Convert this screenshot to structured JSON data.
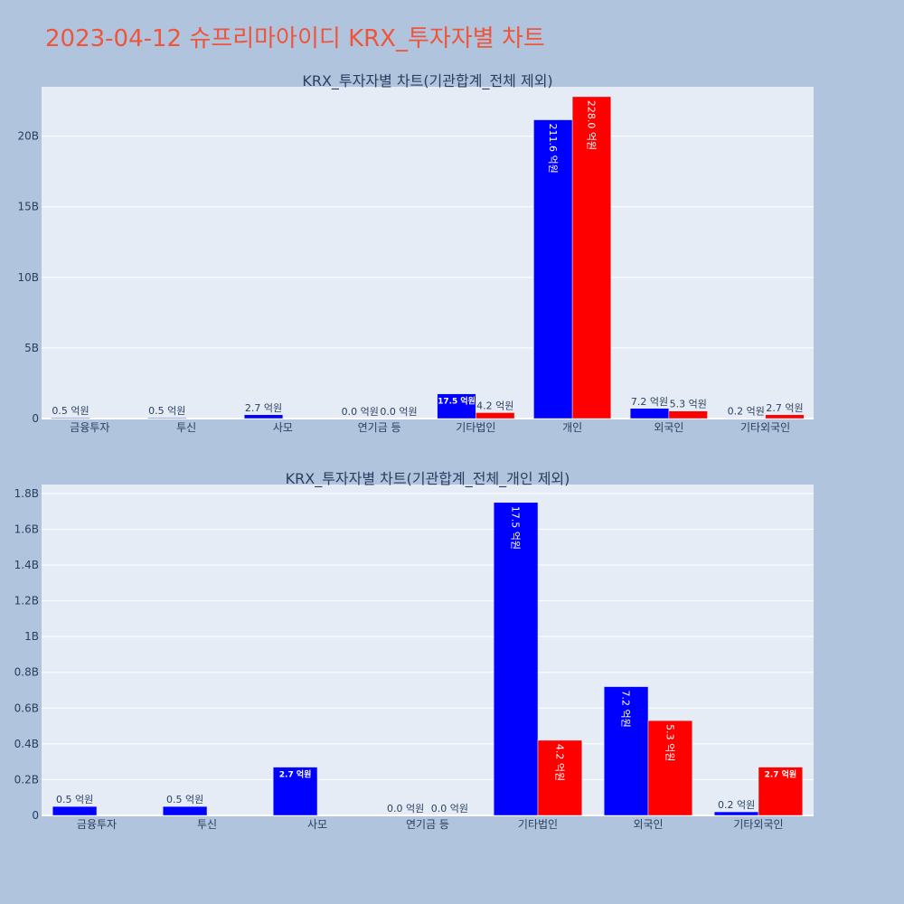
{
  "page": {
    "title": "2023-04-12 슈프리마아이디 KRX_투자자별 차트"
  },
  "colors": {
    "series_a": "#0000ff",
    "series_b": "#ff0000",
    "plot_bg": "#e5ecf6",
    "page_bg": "#b0c4de",
    "title": "#ef553b"
  },
  "chart_data": [
    {
      "type": "bar",
      "title": "KRX_투자자별 차트(기관합계_전체 제외)",
      "categories": [
        "금융투자",
        "투신",
        "사모",
        "연기금 등",
        "기타법인",
        "개인",
        "외국인",
        "기타외국인"
      ],
      "series": [
        {
          "color": "#0000ff",
          "values": [
            0.05,
            0.05,
            0.27,
            0.0,
            1.75,
            21.16,
            0.72,
            0.02
          ],
          "labels": [
            "0.5 억원",
            "0.5 억원",
            "2.7 억원",
            "0.0 억원",
            "17.5 억원",
            "211.6 억원",
            "7.2 억원",
            "0.2 억원"
          ]
        },
        {
          "color": "#ff0000",
          "values": [
            0.0,
            0.0,
            0.0,
            0.0,
            0.42,
            22.8,
            0.53,
            0.27
          ],
          "labels": [
            "",
            "",
            "",
            "0.0 억원",
            "4.2 억원",
            "228.0 억원",
            "5.3 억원",
            "2.7 억원"
          ]
        }
      ],
      "ylim": [
        0,
        23.5
      ],
      "yticks": [
        0,
        5,
        10,
        15,
        20
      ],
      "ytick_labels": [
        "0",
        "5B",
        "10B",
        "15B",
        "20B"
      ],
      "grid": true
    },
    {
      "type": "bar",
      "title": "KRX_투자자별 차트(기관합계_전체_개인 제외)",
      "categories": [
        "금융투자",
        "투신",
        "사모",
        "연기금 등",
        "기타법인",
        "외국인",
        "기타외국인"
      ],
      "series": [
        {
          "color": "#0000ff",
          "values": [
            0.05,
            0.05,
            0.27,
            0.0,
            1.75,
            0.72,
            0.02
          ],
          "labels": [
            "0.5 억원",
            "0.5 억원",
            "2.7 억원",
            "0.0 억원",
            "17.5 억원",
            "7.2 억원",
            "0.2 억원"
          ]
        },
        {
          "color": "#ff0000",
          "values": [
            0.0,
            0.0,
            0.0,
            0.0,
            0.42,
            0.53,
            0.27
          ],
          "labels": [
            "",
            "",
            "",
            "0.0 억원",
            "4.2 억원",
            "5.3 억원",
            "2.7 억원"
          ]
        }
      ],
      "ylim": [
        0,
        1.85
      ],
      "yticks": [
        0,
        0.2,
        0.4,
        0.6,
        0.8,
        1.0,
        1.2,
        1.4,
        1.6,
        1.8
      ],
      "ytick_labels": [
        "0",
        "0.2B",
        "0.4B",
        "0.6B",
        "0.8B",
        "1B",
        "1.2B",
        "1.4B",
        "1.6B",
        "1.8B"
      ],
      "grid": true
    }
  ]
}
